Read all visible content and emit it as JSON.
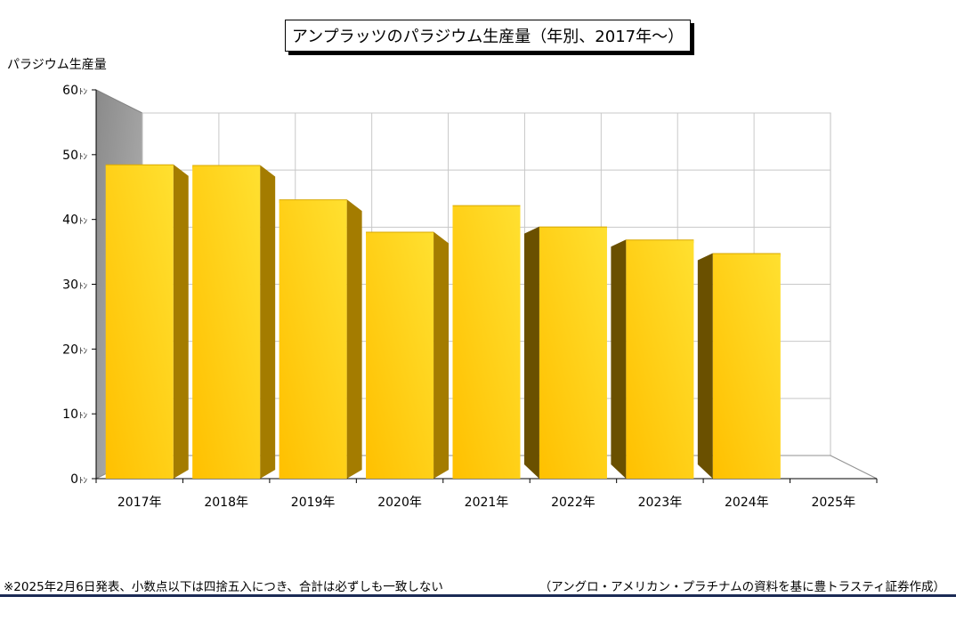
{
  "chart_data": {
    "type": "bar",
    "title": "アンプラッツのパラジウム生産量（年別、2017年～）",
    "ylabel": "パラジウム生産量",
    "xlabel": "",
    "unit": "ﾄﾝ",
    "categories": [
      "2017年",
      "2018年",
      "2019年",
      "2020年",
      "2021年",
      "2022年",
      "2023年",
      "2024年",
      "2025年"
    ],
    "values": [
      48.5,
      48.4,
      43.1,
      38.1,
      42.2,
      38.9,
      36.9,
      34.8,
      null
    ],
    "ylim": [
      0,
      60
    ],
    "yticks": [
      0,
      10,
      20,
      30,
      40,
      50,
      60
    ],
    "ytick_labels": [
      "0",
      "10",
      "20",
      "30",
      "40",
      "50",
      "60"
    ],
    "grid": true,
    "style": "3d-bar",
    "colors": {
      "bar": "#ffc800",
      "bar_side": "#a47c00",
      "bar_side_dark": "#6a5000",
      "wall": "#a0a0a0",
      "grid": "#c8c8c8"
    }
  },
  "footnote": "※2025年2月6日発表、小数点以下は四捨五入につき、合計は必ずしも一致しない",
  "source": "（アングロ・アメリカン・プラチナムの資料を基に豊トラスティ証券作成）",
  "rule_color": "#1b2a55"
}
